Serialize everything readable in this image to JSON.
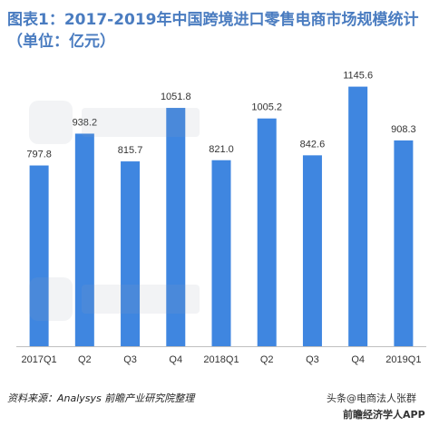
{
  "title": "图表1：2017-2019年中国跨境进口零售电商市场规模统计（单位：亿元）",
  "source": "资料来源：Analysys  前瞻产业研究院整理",
  "watermark_bottom": "头条@电商法人张群",
  "watermark_brand": "前瞻经济学人APP",
  "colors": {
    "bar": "#3f86e0",
    "title": "#4a7cc0",
    "axis": "#bfbfbf"
  },
  "chart_data": {
    "type": "bar",
    "categories": [
      "2017Q1",
      "Q2",
      "Q3",
      "Q4",
      "2018Q1",
      "Q2",
      "Q3",
      "Q4",
      "2019Q1"
    ],
    "values": [
      797.8,
      938.2,
      815.7,
      1051.8,
      821.0,
      1005.2,
      842.6,
      1145.6,
      908.3
    ],
    "value_labels": [
      "797.8",
      "938.2",
      "815.7",
      "1051.8",
      "821.0",
      "1005.2",
      "842.6",
      "1145.6",
      "908.3"
    ],
    "ylim": [
      0,
      1200
    ],
    "grid": false,
    "legend": "none"
  }
}
